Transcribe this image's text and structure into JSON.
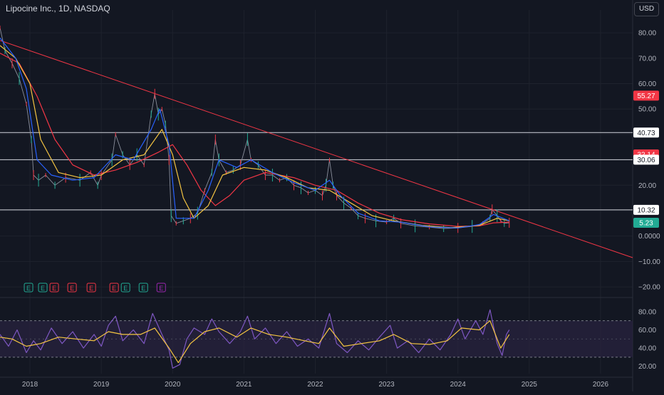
{
  "title": "Lipocine Inc., 1D, NASDAQ",
  "currency": "USD",
  "colors": {
    "background": "#131722",
    "grid": "#1e222d",
    "price": "#4a4e5a",
    "trendline": "#f23645",
    "level": "#d1d4dc",
    "ma_fast": "#2962ff",
    "ma_mid": "#f5c542",
    "ma_slow": "#f23645",
    "rsi": "#7e57c2",
    "rsi_ma": "#f5c542",
    "rsi_band": "#2a2440",
    "axis_text": "#b2b5be",
    "badge_red": "#f23645",
    "badge_green": "#22ab94",
    "earnings_green": "#22ab94",
    "earnings_red": "#f23645",
    "earnings_purple": "#9c27b0"
  },
  "chart_data": [
    {
      "type": "line",
      "panel": "price",
      "y_ticks": [
        "80.00",
        "70.00",
        "60.00",
        "50.00",
        "40.00",
        "30.00",
        "20.00",
        "10.00",
        "0.0000",
        "−10.00",
        "−20.00"
      ],
      "y_tick_values": [
        80,
        70,
        60,
        50,
        40,
        30,
        20,
        10,
        0,
        -10,
        -20
      ],
      "ylim": [
        -22.5,
        89
      ],
      "x_ticks": [
        "2018",
        "2019",
        "2020",
        "2021",
        "2022",
        "2023",
        "2024",
        "2025",
        "2026"
      ],
      "x_tick_values": [
        2018,
        2019,
        2020,
        2021,
        2022,
        2023,
        2024,
        2025,
        2026
      ],
      "xlim": [
        2017.58,
        2026.45
      ],
      "price_series": [
        [
          2017.58,
          82
        ],
        [
          2017.65,
          73
        ],
        [
          2017.75,
          68
        ],
        [
          2017.85,
          62
        ],
        [
          2017.95,
          52
        ],
        [
          2018.02,
          38
        ],
        [
          2018.05,
          24
        ],
        [
          2018.12,
          22
        ],
        [
          2018.22,
          24
        ],
        [
          2018.35,
          20
        ],
        [
          2018.5,
          23
        ],
        [
          2018.7,
          22
        ],
        [
          2018.85,
          25
        ],
        [
          2018.95,
          20
        ],
        [
          2019.0,
          24
        ],
        [
          2019.15,
          30
        ],
        [
          2019.2,
          40
        ],
        [
          2019.3,
          32
        ],
        [
          2019.4,
          28
        ],
        [
          2019.5,
          32
        ],
        [
          2019.6,
          28
        ],
        [
          2019.7,
          48
        ],
        [
          2019.75,
          56
        ],
        [
          2019.8,
          48
        ],
        [
          2019.85,
          50
        ],
        [
          2019.9,
          44
        ],
        [
          2019.95,
          30
        ],
        [
          2019.98,
          8
        ],
        [
          2020.05,
          5
        ],
        [
          2020.15,
          6
        ],
        [
          2020.25,
          7
        ],
        [
          2020.35,
          9
        ],
        [
          2020.45,
          18
        ],
        [
          2020.55,
          25
        ],
        [
          2020.6,
          38
        ],
        [
          2020.65,
          30
        ],
        [
          2020.75,
          25
        ],
        [
          2020.85,
          26
        ],
        [
          2020.95,
          28
        ],
        [
          2021.05,
          38
        ],
        [
          2021.1,
          30
        ],
        [
          2021.2,
          28
        ],
        [
          2021.3,
          24
        ],
        [
          2021.4,
          24
        ],
        [
          2021.5,
          22
        ],
        [
          2021.6,
          23
        ],
        [
          2021.7,
          20
        ],
        [
          2021.8,
          19
        ],
        [
          2021.9,
          17
        ],
        [
          2022.0,
          18
        ],
        [
          2022.1,
          16
        ],
        [
          2022.15,
          20
        ],
        [
          2022.2,
          30
        ],
        [
          2022.25,
          20
        ],
        [
          2022.3,
          16
        ],
        [
          2022.4,
          13
        ],
        [
          2022.5,
          11
        ],
        [
          2022.6,
          8
        ],
        [
          2022.7,
          7
        ],
        [
          2022.85,
          6
        ],
        [
          2023.0,
          5.5
        ],
        [
          2023.1,
          7
        ],
        [
          2023.2,
          5
        ],
        [
          2023.4,
          4
        ],
        [
          2023.6,
          3.5
        ],
        [
          2023.8,
          3
        ],
        [
          2024.0,
          3.2
        ],
        [
          2024.2,
          3.8
        ],
        [
          2024.35,
          5
        ],
        [
          2024.45,
          7
        ],
        [
          2024.48,
          10.5
        ],
        [
          2024.55,
          8
        ],
        [
          2024.6,
          6
        ],
        [
          2024.65,
          5
        ],
        [
          2024.72,
          5.23
        ]
      ],
      "ma_fast": [
        [
          2017.58,
          78
        ],
        [
          2017.8,
          70
        ],
        [
          2017.95,
          58
        ],
        [
          2018.1,
          30
        ],
        [
          2018.3,
          24
        ],
        [
          2018.6,
          22
        ],
        [
          2018.9,
          23
        ],
        [
          2019.2,
          32
        ],
        [
          2019.45,
          30
        ],
        [
          2019.7,
          42
        ],
        [
          2019.82,
          50
        ],
        [
          2019.95,
          36
        ],
        [
          2020.05,
          7
        ],
        [
          2020.3,
          7
        ],
        [
          2020.5,
          18
        ],
        [
          2020.65,
          30
        ],
        [
          2020.9,
          27
        ],
        [
          2021.1,
          30
        ],
        [
          2021.4,
          25
        ],
        [
          2021.7,
          21
        ],
        [
          2022.0,
          18
        ],
        [
          2022.2,
          22
        ],
        [
          2022.35,
          16
        ],
        [
          2022.6,
          9
        ],
        [
          2022.9,
          6
        ],
        [
          2023.2,
          5.5
        ],
        [
          2023.6,
          3.6
        ],
        [
          2024.0,
          3.2
        ],
        [
          2024.3,
          4.5
        ],
        [
          2024.5,
          8.5
        ],
        [
          2024.72,
          6
        ]
      ],
      "ma_mid": [
        [
          2017.58,
          75
        ],
        [
          2017.8,
          70
        ],
        [
          2018.0,
          60
        ],
        [
          2018.15,
          38
        ],
        [
          2018.4,
          25
        ],
        [
          2018.7,
          23
        ],
        [
          2019.0,
          24
        ],
        [
          2019.3,
          30
        ],
        [
          2019.6,
          32
        ],
        [
          2019.85,
          42
        ],
        [
          2020.0,
          32
        ],
        [
          2020.15,
          15
        ],
        [
          2020.3,
          7
        ],
        [
          2020.5,
          12
        ],
        [
          2020.7,
          24
        ],
        [
          2021.0,
          27
        ],
        [
          2021.3,
          26
        ],
        [
          2021.6,
          23
        ],
        [
          2021.9,
          19
        ],
        [
          2022.2,
          18
        ],
        [
          2022.5,
          13
        ],
        [
          2022.8,
          8
        ],
        [
          2023.1,
          6
        ],
        [
          2023.5,
          4.2
        ],
        [
          2023.9,
          3.3
        ],
        [
          2024.3,
          4.2
        ],
        [
          2024.55,
          7
        ],
        [
          2024.72,
          6
        ]
      ],
      "ma_slow": [
        [
          2017.58,
          72
        ],
        [
          2017.85,
          68
        ],
        [
          2018.1,
          55
        ],
        [
          2018.35,
          38
        ],
        [
          2018.6,
          28
        ],
        [
          2018.9,
          24
        ],
        [
          2019.2,
          26
        ],
        [
          2019.5,
          29
        ],
        [
          2019.8,
          33
        ],
        [
          2020.0,
          36
        ],
        [
          2020.2,
          28
        ],
        [
          2020.4,
          18
        ],
        [
          2020.6,
          12
        ],
        [
          2020.8,
          16
        ],
        [
          2021.0,
          22
        ],
        [
          2021.3,
          25
        ],
        [
          2021.7,
          23
        ],
        [
          2022.0,
          20
        ],
        [
          2022.3,
          18
        ],
        [
          2022.6,
          13
        ],
        [
          2022.9,
          9
        ],
        [
          2023.2,
          6.5
        ],
        [
          2023.6,
          4.8
        ],
        [
          2024.0,
          3.8
        ],
        [
          2024.3,
          4
        ],
        [
          2024.5,
          5.2
        ],
        [
          2024.72,
          5.5
        ]
      ],
      "trendline": [
        [
          2017.58,
          77
        ],
        [
          2026.45,
          -8.5
        ]
      ],
      "horizontal_levels": [
        40.73,
        30.06,
        10.32
      ],
      "price_labels": [
        {
          "text": "55.27",
          "value": 55.27,
          "color": "red"
        },
        {
          "text": "40.73",
          "value": 40.73,
          "color": "white"
        },
        {
          "text": "32.14",
          "value": 32.14,
          "color": "red"
        },
        {
          "text": "30.06",
          "value": 30.06,
          "color": "white"
        },
        {
          "text": "10.32",
          "value": 10.32,
          "color": "white"
        },
        {
          "text": "5.23",
          "value": 5.23,
          "color": "green"
        }
      ],
      "earnings_markers": [
        {
          "label": "E",
          "x": 2017.98,
          "color": "green"
        },
        {
          "label": "E",
          "x": 2018.18,
          "color": "green"
        },
        {
          "label": "E",
          "x": 2018.34,
          "color": "red"
        },
        {
          "label": "E",
          "x": 2018.59,
          "color": "red"
        },
        {
          "label": "E",
          "x": 2018.86,
          "color": "red"
        },
        {
          "label": "E",
          "x": 2019.18,
          "color": "red"
        },
        {
          "label": "E",
          "x": 2019.34,
          "color": "green"
        },
        {
          "label": "E",
          "x": 2019.59,
          "color": "green"
        },
        {
          "label": "E",
          "x": 2019.84,
          "color": "purple"
        }
      ]
    },
    {
      "type": "line",
      "panel": "rsi",
      "y_ticks": [
        "80.00",
        "60.00",
        "40.00",
        "20.00"
      ],
      "y_tick_values": [
        80,
        60,
        40,
        20
      ],
      "ylim": [
        12,
        90
      ],
      "band": [
        30,
        70
      ],
      "midline": 50,
      "rsi_series": [
        [
          2017.58,
          55
        ],
        [
          2017.7,
          42
        ],
        [
          2017.82,
          60
        ],
        [
          2017.95,
          35
        ],
        [
          2018.05,
          48
        ],
        [
          2018.15,
          38
        ],
        [
          2018.3,
          62
        ],
        [
          2018.45,
          45
        ],
        [
          2018.6,
          58
        ],
        [
          2018.75,
          40
        ],
        [
          2018.9,
          55
        ],
        [
          2019.0,
          42
        ],
        [
          2019.1,
          65
        ],
        [
          2019.2,
          75
        ],
        [
          2019.3,
          48
        ],
        [
          2019.45,
          60
        ],
        [
          2019.6,
          45
        ],
        [
          2019.72,
          78
        ],
        [
          2019.85,
          55
        ],
        [
          2019.95,
          38
        ],
        [
          2020.0,
          18
        ],
        [
          2020.1,
          22
        ],
        [
          2020.2,
          50
        ],
        [
          2020.3,
          62
        ],
        [
          2020.45,
          55
        ],
        [
          2020.55,
          72
        ],
        [
          2020.65,
          58
        ],
        [
          2020.8,
          45
        ],
        [
          2020.95,
          58
        ],
        [
          2021.05,
          75
        ],
        [
          2021.15,
          50
        ],
        [
          2021.3,
          62
        ],
        [
          2021.45,
          45
        ],
        [
          2021.6,
          58
        ],
        [
          2021.75,
          42
        ],
        [
          2021.9,
          50
        ],
        [
          2022.05,
          40
        ],
        [
          2022.2,
          78
        ],
        [
          2022.3,
          45
        ],
        [
          2022.45,
          35
        ],
        [
          2022.6,
          48
        ],
        [
          2022.75,
          38
        ],
        [
          2022.9,
          52
        ],
        [
          2023.05,
          65
        ],
        [
          2023.15,
          40
        ],
        [
          2023.3,
          48
        ],
        [
          2023.45,
          35
        ],
        [
          2023.6,
          50
        ],
        [
          2023.75,
          38
        ],
        [
          2023.9,
          55
        ],
        [
          2024.0,
          72
        ],
        [
          2024.1,
          50
        ],
        [
          2024.25,
          70
        ],
        [
          2024.35,
          55
        ],
        [
          2024.45,
          82
        ],
        [
          2024.55,
          45
        ],
        [
          2024.62,
          32
        ],
        [
          2024.68,
          55
        ],
        [
          2024.72,
          60
        ]
      ],
      "rsi_ma": [
        [
          2017.58,
          52
        ],
        [
          2017.75,
          50
        ],
        [
          2017.95,
          42
        ],
        [
          2018.15,
          45
        ],
        [
          2018.4,
          52
        ],
        [
          2018.65,
          50
        ],
        [
          2018.9,
          48
        ],
        [
          2019.1,
          58
        ],
        [
          2019.3,
          55
        ],
        [
          2019.55,
          55
        ],
        [
          2019.75,
          62
        ],
        [
          2019.95,
          40
        ],
        [
          2020.08,
          24
        ],
        [
          2020.25,
          45
        ],
        [
          2020.45,
          58
        ],
        [
          2020.65,
          62
        ],
        [
          2020.9,
          52
        ],
        [
          2021.1,
          62
        ],
        [
          2021.35,
          55
        ],
        [
          2021.6,
          52
        ],
        [
          2021.85,
          48
        ],
        [
          2022.05,
          45
        ],
        [
          2022.2,
          62
        ],
        [
          2022.4,
          42
        ],
        [
          2022.65,
          45
        ],
        [
          2022.9,
          48
        ],
        [
          2023.1,
          55
        ],
        [
          2023.35,
          45
        ],
        [
          2023.6,
          44
        ],
        [
          2023.85,
          48
        ],
        [
          2024.05,
          62
        ],
        [
          2024.3,
          60
        ],
        [
          2024.45,
          70
        ],
        [
          2024.6,
          40
        ],
        [
          2024.72,
          55
        ]
      ]
    }
  ]
}
